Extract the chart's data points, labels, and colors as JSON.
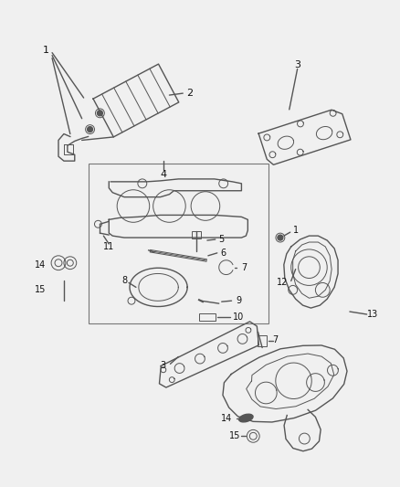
{
  "background_color": "#f0f0f0",
  "line_color": "#555555",
  "dark_color": "#333333",
  "fig_width": 4.39,
  "fig_height": 5.33,
  "dpi": 100
}
